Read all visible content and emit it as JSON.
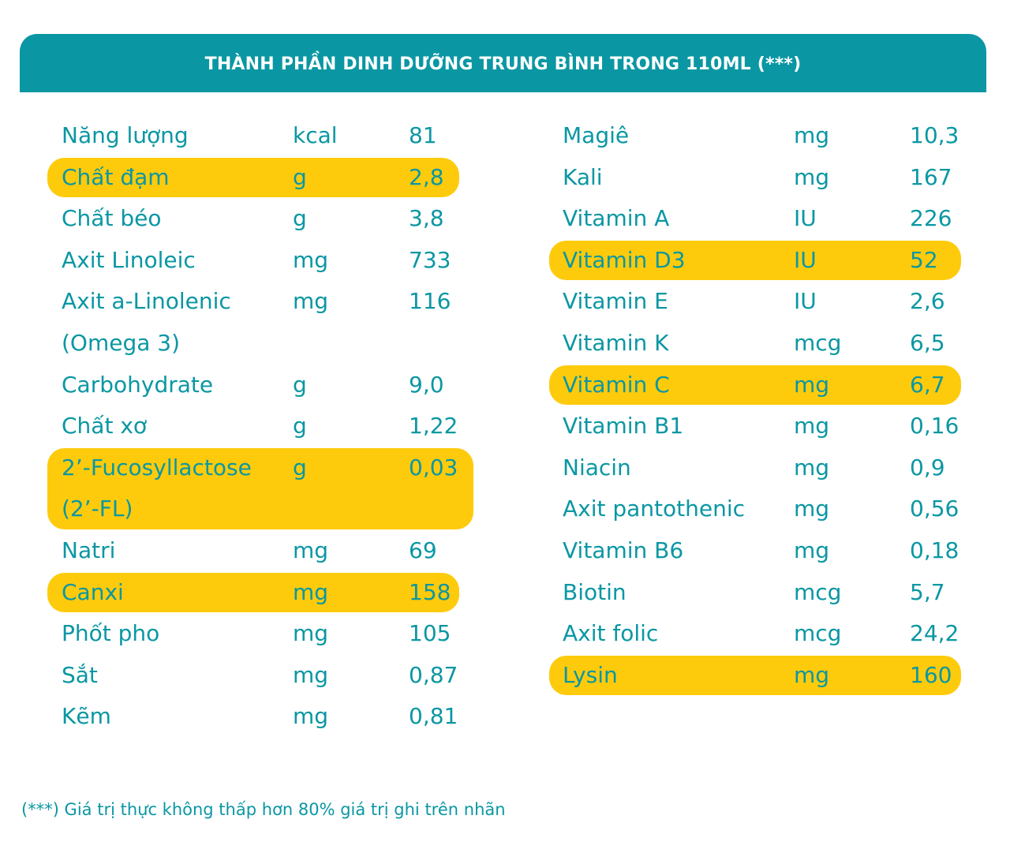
{
  "header": {
    "title": "THÀNH PHẦN DINH DƯỠNG TRUNG BÌNH TRONG 110ML (***)"
  },
  "colors": {
    "teal": "#0a97a3",
    "highlight": "#fdcb0c",
    "text": "#0a97a3"
  },
  "left_rows": [
    {
      "name": "Năng lượng",
      "unit": "kcal",
      "value": "81",
      "highlight": false
    },
    {
      "name": "Chất đạm",
      "unit": "g",
      "value": "2,8",
      "highlight": true
    },
    {
      "name": "Chất béo",
      "unit": "g",
      "value": "3,8",
      "highlight": false
    },
    {
      "name": "Axit Linoleic",
      "unit": "mg",
      "value": "733",
      "highlight": false
    },
    {
      "name": "Axit a-Linolenic (Omega 3)",
      "unit": "mg",
      "value": "116",
      "highlight": false
    },
    {
      "name": "Carbohydrate",
      "unit": "g",
      "value": "9,0",
      "highlight": false
    },
    {
      "name": "Chất xơ",
      "unit": "g",
      "value": "1,22",
      "highlight": false
    },
    {
      "name": "2’-Fucosyllactose (2’-FL)",
      "unit": "g",
      "value": "0,03",
      "highlight": true
    },
    {
      "name": "Natri",
      "unit": "mg",
      "value": "69",
      "highlight": false
    },
    {
      "name": "Canxi",
      "unit": "mg",
      "value": "158",
      "highlight": true
    },
    {
      "name": "Phốt pho",
      "unit": "mg",
      "value": "105",
      "highlight": false
    },
    {
      "name": "Sắt",
      "unit": "mg",
      "value": "0,87",
      "highlight": false
    },
    {
      "name": "Kẽm",
      "unit": "mg",
      "value": "0,81",
      "highlight": false
    }
  ],
  "right_rows": [
    {
      "name": "Magiê",
      "unit": "mg",
      "value": "10,3",
      "highlight": false
    },
    {
      "name": "Kali",
      "unit": "mg",
      "value": "167",
      "highlight": false
    },
    {
      "name": "Vitamin A",
      "unit": "IU",
      "value": "226",
      "highlight": false
    },
    {
      "name": "Vitamin D3",
      "unit": "IU",
      "value": "52",
      "highlight": true
    },
    {
      "name": "Vitamin E",
      "unit": "IU",
      "value": "2,6",
      "highlight": false
    },
    {
      "name": "Vitamin K",
      "unit": "mcg",
      "value": "6,5",
      "highlight": false
    },
    {
      "name": "Vitamin C",
      "unit": "mg",
      "value": "6,7",
      "highlight": true
    },
    {
      "name": "Vitamin B1",
      "unit": "mg",
      "value": "0,16",
      "highlight": false
    },
    {
      "name": "Niacin",
      "unit": "mg",
      "value": "0,9",
      "highlight": false
    },
    {
      "name": "Axit pantothenic",
      "unit": "mg",
      "value": "0,56",
      "highlight": false
    },
    {
      "name": "Vitamin B6",
      "unit": "mg",
      "value": "0,18",
      "highlight": false
    },
    {
      "name": "Biotin",
      "unit": "mcg",
      "value": "5,7",
      "highlight": false
    },
    {
      "name": "Axit folic",
      "unit": "mcg",
      "value": "24,2",
      "highlight": false
    },
    {
      "name": "Lysin",
      "unit": "mg",
      "value": "160",
      "highlight": true
    }
  ],
  "footnote": "(***) Giá trị thực không thấp hơn 80% giá trị ghi trên nhãn"
}
